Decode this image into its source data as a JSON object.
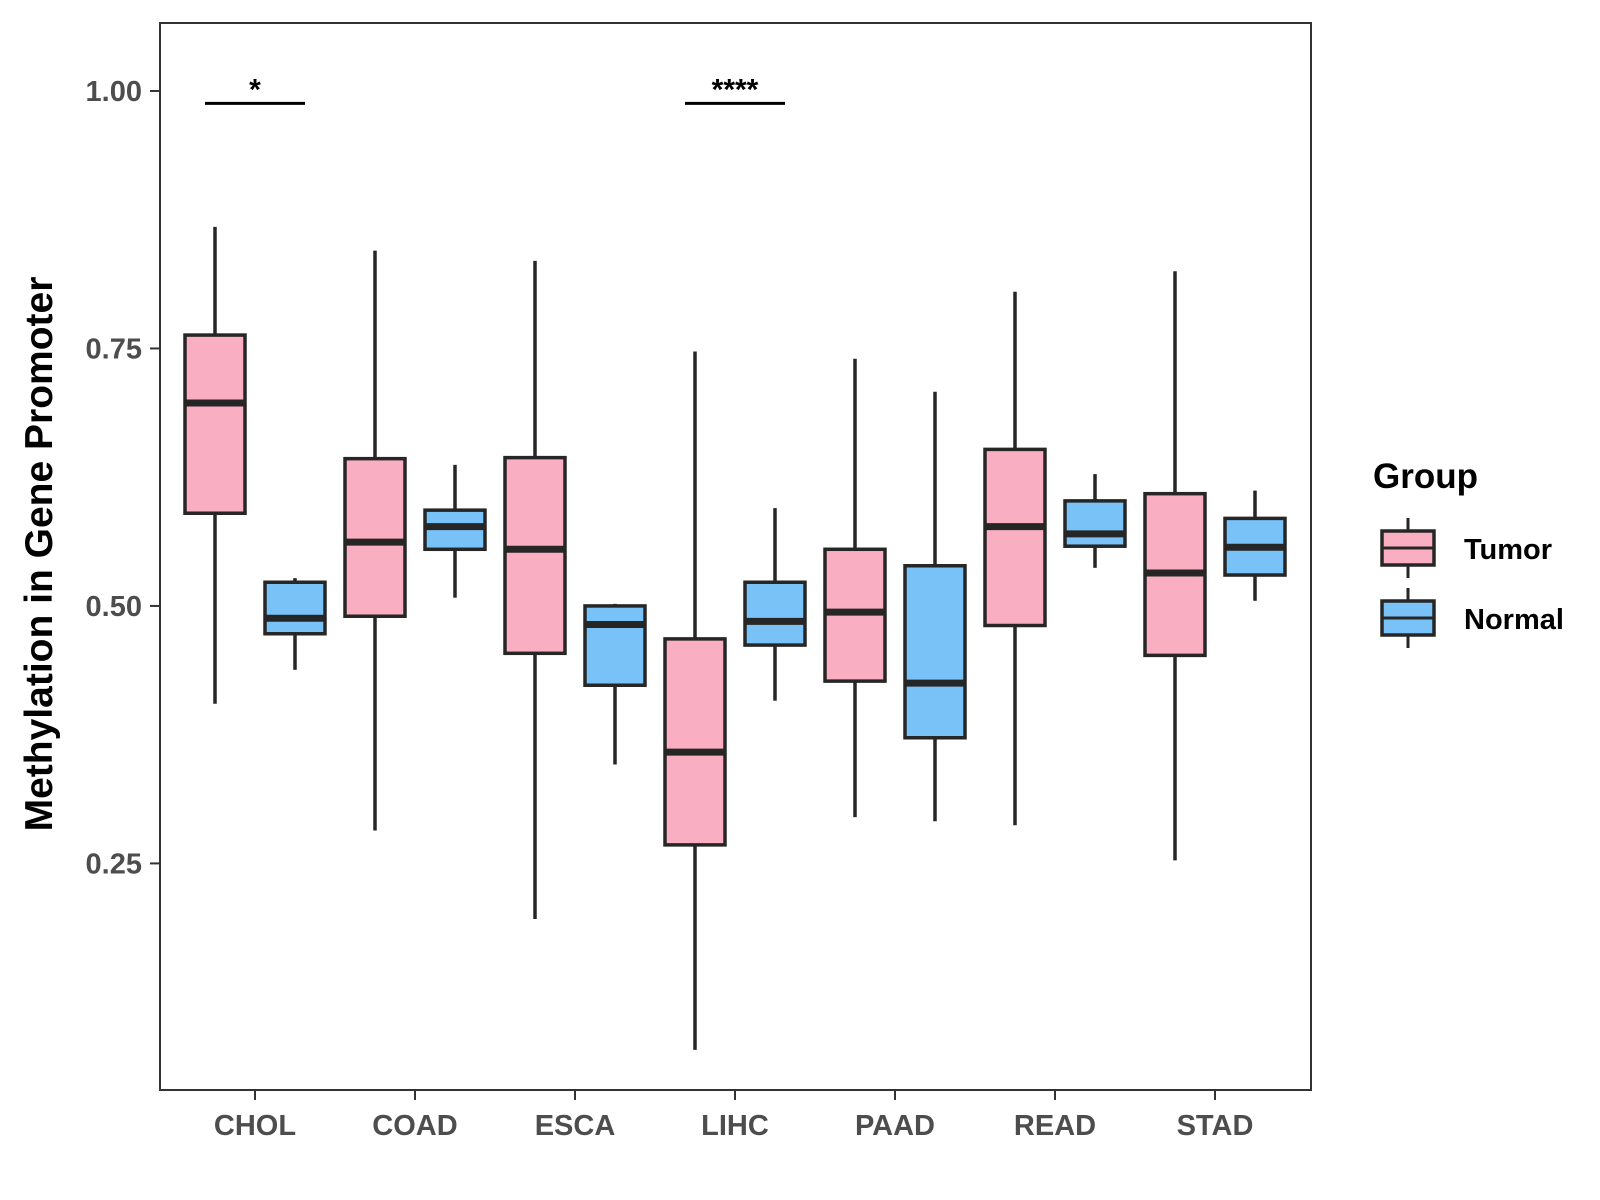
{
  "chart_data": {
    "type": "boxplot",
    "title": "",
    "xlabel": "",
    "ylabel": "Methylation in Gene Promoter",
    "ylim": [
      0.03,
      1.066
    ],
    "yticks": [
      0.25,
      0.5,
      0.75,
      1.0
    ],
    "ytick_labels": [
      "0.25",
      "0.50",
      "0.75",
      "1.00"
    ],
    "categories": [
      "CHOL",
      "COAD",
      "ESCA",
      "LIHC",
      "PAAD",
      "READ",
      "STAD"
    ],
    "grid": false,
    "legend": {
      "title": "Group",
      "position": "right"
    },
    "series": [
      {
        "name": "Tumor",
        "color": "#F9AFC1",
        "boxes": [
          {
            "min": 0.405,
            "q1": 0.59,
            "median": 0.697,
            "q3": 0.763,
            "max": 0.868
          },
          {
            "min": 0.282,
            "q1": 0.49,
            "median": 0.562,
            "q3": 0.643,
            "max": 0.845
          },
          {
            "min": 0.196,
            "q1": 0.454,
            "median": 0.555,
            "q3": 0.644,
            "max": 0.835
          },
          {
            "min": 0.069,
            "q1": 0.268,
            "median": 0.358,
            "q3": 0.468,
            "max": 0.747
          },
          {
            "min": 0.295,
            "q1": 0.427,
            "median": 0.494,
            "q3": 0.555,
            "max": 0.74
          },
          {
            "min": 0.287,
            "q1": 0.481,
            "median": 0.577,
            "q3": 0.652,
            "max": 0.805
          },
          {
            "min": 0.253,
            "q1": 0.452,
            "median": 0.532,
            "q3": 0.609,
            "max": 0.825
          }
        ]
      },
      {
        "name": "Normal",
        "color": "#79C2F7",
        "boxes": [
          {
            "min": 0.438,
            "q1": 0.473,
            "median": 0.488,
            "q3": 0.523,
            "max": 0.527
          },
          {
            "min": 0.508,
            "q1": 0.555,
            "median": 0.577,
            "q3": 0.593,
            "max": 0.637
          },
          {
            "min": 0.346,
            "q1": 0.423,
            "median": 0.482,
            "q3": 0.5,
            "max": 0.502
          },
          {
            "min": 0.408,
            "q1": 0.462,
            "median": 0.485,
            "q3": 0.523,
            "max": 0.595
          },
          {
            "min": 0.291,
            "q1": 0.372,
            "median": 0.425,
            "q3": 0.539,
            "max": 0.708
          },
          {
            "min": 0.537,
            "q1": 0.558,
            "median": 0.57,
            "q3": 0.602,
            "max": 0.628
          },
          {
            "min": 0.505,
            "q1": 0.53,
            "median": 0.557,
            "q3": 0.585,
            "max": 0.612
          }
        ]
      }
    ],
    "significance": [
      {
        "category": "CHOL",
        "label": "*",
        "y": 0.988
      },
      {
        "category": "LIHC",
        "label": "****",
        "y": 0.988
      }
    ]
  }
}
